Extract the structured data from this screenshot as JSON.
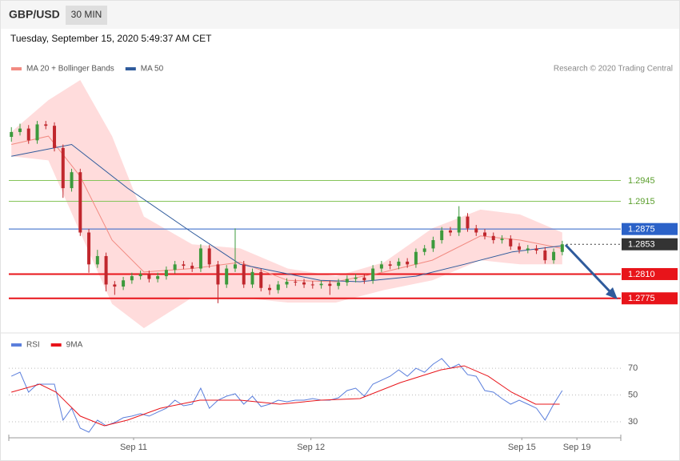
{
  "header": {
    "symbol": "GBP/USD",
    "timeframe": "30 MIN",
    "timestamp": "Tuesday, September 15, 2020 5:49:37 AM CET"
  },
  "chart_data": [
    {
      "type": "candlestick",
      "credit": "Research © 2020 Trading Central",
      "xlim": [
        -0.3,
        70.8
      ],
      "ylim": [
        1.2732,
        1.309
      ],
      "up_color": "#3c9a3c",
      "down_color": "#c0272d",
      "candles": [
        [
          1.3008,
          1.3022,
          1.3001,
          1.3015
        ],
        [
          1.3015,
          1.3027,
          1.301,
          1.302
        ],
        [
          1.302,
          1.3025,
          1.2998,
          1.3003
        ],
        [
          1.3003,
          1.3031,
          1.2998,
          1.3026
        ],
        [
          1.3026,
          1.3031,
          1.3019,
          1.3024
        ],
        [
          1.3024,
          1.3029,
          1.2987,
          1.2992
        ],
        [
          1.2992,
          1.2997,
          1.292,
          1.2934
        ],
        [
          1.2934,
          1.2962,
          1.2929,
          1.2957
        ],
        [
          1.2957,
          1.2962,
          1.2865,
          1.287
        ],
        [
          1.287,
          1.2875,
          1.2812,
          1.2824
        ],
        [
          1.2824,
          1.2845,
          1.2819,
          1.2836
        ],
        [
          1.2836,
          1.2841,
          1.2785,
          1.2795
        ],
        [
          1.2795,
          1.28,
          1.278,
          1.2792
        ],
        [
          1.2792,
          1.2806,
          1.2787,
          1.2801
        ],
        [
          1.2801,
          1.2812,
          1.2796,
          1.2807
        ],
        [
          1.2807,
          1.2815,
          1.2802,
          1.281
        ],
        [
          1.281,
          1.2815,
          1.2798,
          1.2803
        ],
        [
          1.2803,
          1.2812,
          1.2798,
          1.2807
        ],
        [
          1.2807,
          1.2821,
          1.2802,
          1.2816
        ],
        [
          1.2816,
          1.2829,
          1.2811,
          1.2824
        ],
        [
          1.2824,
          1.2829,
          1.2817,
          1.2822
        ],
        [
          1.2822,
          1.2827,
          1.2813,
          1.2818
        ],
        [
          1.2818,
          1.2853,
          1.2813,
          1.2847
        ],
        [
          1.2847,
          1.2852,
          1.2819,
          1.2824
        ],
        [
          1.2824,
          1.2829,
          1.2768,
          1.2795
        ],
        [
          1.2795,
          1.2823,
          1.279,
          1.2818
        ],
        [
          1.2818,
          1.2876,
          1.2813,
          1.2824
        ],
        [
          1.2824,
          1.2829,
          1.279,
          1.2795
        ],
        [
          1.2795,
          1.2818,
          1.279,
          1.2813
        ],
        [
          1.2813,
          1.2818,
          1.2785,
          1.279
        ],
        [
          1.279,
          1.2795,
          1.278,
          1.2787
        ],
        [
          1.2787,
          1.28,
          1.2782,
          1.2795
        ],
        [
          1.2795,
          1.2804,
          1.279,
          1.2799
        ],
        [
          1.2799,
          1.2803,
          1.2793,
          1.2798
        ],
        [
          1.2798,
          1.2803,
          1.279,
          1.2795
        ],
        [
          1.2795,
          1.28,
          1.2789,
          1.2794
        ],
        [
          1.2794,
          1.2801,
          1.2789,
          1.2796
        ],
        [
          1.2796,
          1.2801,
          1.278,
          1.2793
        ],
        [
          1.2793,
          1.2803,
          1.2788,
          1.2798
        ],
        [
          1.2798,
          1.2808,
          1.2793,
          1.2803
        ],
        [
          1.2803,
          1.281,
          1.2798,
          1.2805
        ],
        [
          1.2805,
          1.281,
          1.2796,
          1.2801
        ],
        [
          1.2801,
          1.2823,
          1.2796,
          1.2818
        ],
        [
          1.2818,
          1.2829,
          1.2813,
          1.2824
        ],
        [
          1.2824,
          1.2829,
          1.2817,
          1.2822
        ],
        [
          1.2822,
          1.2833,
          1.2817,
          1.2828
        ],
        [
          1.2828,
          1.2833,
          1.2819,
          1.2824
        ],
        [
          1.2824,
          1.2847,
          1.2819,
          1.2842
        ],
        [
          1.2842,
          1.2852,
          1.2837,
          1.2847
        ],
        [
          1.2847,
          1.2864,
          1.2842,
          1.2859
        ],
        [
          1.2859,
          1.2878,
          1.2854,
          1.2873
        ],
        [
          1.2873,
          1.2878,
          1.2865,
          1.287
        ],
        [
          1.287,
          1.2908,
          1.2865,
          1.2893
        ],
        [
          1.2893,
          1.2898,
          1.2871,
          1.2876
        ],
        [
          1.2876,
          1.2881,
          1.2865,
          1.287
        ],
        [
          1.287,
          1.2875,
          1.286,
          1.2865
        ],
        [
          1.2865,
          1.287,
          1.2854,
          1.2859
        ],
        [
          1.2859,
          1.2866,
          1.2854,
          1.2861
        ],
        [
          1.2861,
          1.2866,
          1.2845,
          1.285
        ],
        [
          1.285,
          1.2855,
          1.284,
          1.2845
        ],
        [
          1.2845,
          1.2852,
          1.284,
          1.2847
        ],
        [
          1.2847,
          1.2852,
          1.2839,
          1.2844
        ],
        [
          1.2844,
          1.2849,
          1.2825,
          1.283
        ],
        [
          1.283,
          1.2847,
          1.2825,
          1.2842
        ],
        [
          1.2842,
          1.2858,
          1.2837,
          1.2853
        ]
      ],
      "series": [
        {
          "name": "MA 20 + Bollinger Bands",
          "color": "#f28b82",
          "band_color": "#ffdcdc",
          "x": [
            0,
            4.3,
            8,
            11.7,
            15.4,
            21,
            26.6,
            32.1,
            37.7,
            43.3,
            48.9,
            54.5,
            59.1,
            64
          ],
          "values": [
            1.2997,
            1.3009,
            1.2951,
            1.2859,
            1.2813,
            1.2818,
            1.2827,
            1.2801,
            1.2799,
            1.2813,
            1.283,
            1.2865,
            1.2859,
            1.2847
          ],
          "upper": [
            1.3015,
            1.3061,
            1.309,
            1.3009,
            1.2893,
            1.2853,
            1.2847,
            1.2818,
            1.2807,
            1.2827,
            1.2876,
            1.2903,
            1.2896,
            1.287
          ],
          "lower": [
            1.298,
            1.2974,
            1.287,
            1.2767,
            1.2732,
            1.2776,
            1.2776,
            1.2769,
            1.2769,
            1.2787,
            1.2801,
            1.283,
            1.2824,
            1.2824
          ]
        },
        {
          "name": "MA 50",
          "color": "#2f5b9c",
          "x": [
            0,
            7,
            13.5,
            21,
            26.6,
            35.9,
            40.5,
            47,
            52.6,
            58.2,
            64
          ],
          "values": [
            1.298,
            1.2997,
            1.2934,
            1.287,
            1.2824,
            1.2801,
            1.2799,
            1.2807,
            1.2824,
            1.2842,
            1.2851
          ]
        }
      ],
      "levels": [
        {
          "value": 1.2945,
          "label": "1.2945",
          "color": "#86c55a",
          "text_color": "#5a9e2c",
          "style": "solid",
          "box": false
        },
        {
          "value": 1.2915,
          "label": "1.2915",
          "color": "#86c55a",
          "text_color": "#5a9e2c",
          "style": "solid",
          "box": false
        },
        {
          "value": 1.2875,
          "label": "1.2875",
          "color": "#2b62c8",
          "text_color": "#ffffff",
          "style": "solid",
          "box": true
        },
        {
          "value": 1.2853,
          "label": "1.2853",
          "color": "#333333",
          "text_color": "#ffffff",
          "style": "dotted",
          "box": true
        },
        {
          "value": 1.281,
          "label": "1.2810",
          "color": "#e8141a",
          "text_color": "#ffffff",
          "style": "thick",
          "box": true
        },
        {
          "value": 1.2775,
          "label": "1.2775",
          "color": "#e8141a",
          "text_color": "#ffffff",
          "style": "thick",
          "box": true
        }
      ]
    },
    {
      "type": "line",
      "xlim": [
        -0.3,
        70.8
      ],
      "ylim": [
        18,
        82
      ],
      "yticks": [
        70,
        50,
        30
      ],
      "xticks": [
        {
          "value": 14.2,
          "label": "Sep 11"
        },
        {
          "value": 34.8,
          "label": "Sep 12"
        },
        {
          "value": 59.3,
          "label": "Sep 15"
        },
        {
          "value": 65.7,
          "label": "Sep 19"
        }
      ],
      "series": [
        {
          "name": "RSI",
          "color": "#5b7fdc",
          "values": [
            64,
            67,
            52.1,
            58.1,
            58.1,
            58.1,
            31.2,
            40.1,
            25.2,
            22.2,
            31.2,
            27,
            29.4,
            33,
            34.2,
            36,
            34.2,
            37.2,
            40.1,
            46.1,
            41.9,
            43.1,
            55.1,
            40.1,
            46.1,
            49.1,
            50.9,
            43.1,
            49.1,
            41.3,
            43.1,
            46.1,
            44.9,
            46.1,
            46.1,
            47.3,
            46.1,
            46.1,
            47.9,
            53.3,
            55.1,
            49.1,
            58.1,
            61,
            64,
            68.8,
            64,
            70,
            67,
            73,
            77.2,
            70,
            73,
            65.2,
            64,
            53.3,
            52.1,
            47.3,
            43.1,
            46.1,
            43.1,
            40.1,
            31.2,
            43.1,
            53.3
          ]
        },
        {
          "name": "9MA",
          "color": "#e8141a",
          "x": [
            0,
            3.3,
            5.2,
            8,
            10.8,
            13.5,
            17.3,
            21.9,
            26.6,
            31.2,
            35.9,
            40.5,
            45.2,
            49.9,
            52.6,
            55.4,
            58.1,
            60.9,
            63.7
          ],
          "values": [
            52.1,
            58.1,
            52.1,
            34.2,
            27,
            31.2,
            40.1,
            46.1,
            46.1,
            43.1,
            46.1,
            47.3,
            59.3,
            68.8,
            71.8,
            64,
            52.1,
            43.1,
            43.1
          ]
        }
      ]
    }
  ]
}
